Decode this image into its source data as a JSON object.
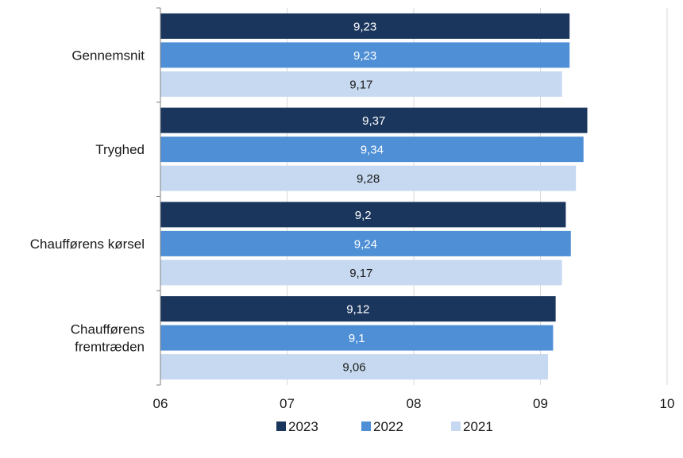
{
  "chart_data": {
    "type": "bar",
    "orientation": "horizontal",
    "categories": [
      "Gennemsnit",
      "Tryghed",
      "Chaufførens kørsel",
      "Chaufførens fremtræden"
    ],
    "category_lines": [
      [
        "Gennemsnit"
      ],
      [
        "Tryghed"
      ],
      [
        "Chaufførens kørsel"
      ],
      [
        "Chaufførens",
        "fremtræden"
      ]
    ],
    "series": [
      {
        "name": "2023",
        "color": "#1b365d",
        "label_color": "#ffffff",
        "values": [
          9.23,
          9.37,
          9.2,
          9.12
        ],
        "labels": [
          "9,23",
          "9,37",
          "9,2",
          "9,12"
        ]
      },
      {
        "name": "2022",
        "color": "#4f8fd6",
        "label_color": "#ffffff",
        "values": [
          9.23,
          9.34,
          9.24,
          9.1
        ],
        "labels": [
          "9,23",
          "9,34",
          "9,24",
          "9,1"
        ]
      },
      {
        "name": "2021",
        "color": "#c6d9f0",
        "label_color": "#1a1a1a",
        "values": [
          9.17,
          9.28,
          9.17,
          9.06
        ],
        "labels": [
          "9,17",
          "9,28",
          "9,17",
          "9,06"
        ]
      }
    ],
    "xlim": [
      6,
      10
    ],
    "xticks": [
      6,
      7,
      8,
      9,
      10
    ],
    "xtick_labels": [
      "06",
      "07",
      "08",
      "09",
      "10"
    ],
    "grid": true,
    "legend_position": "bottom",
    "title": "",
    "xlabel": "",
    "ylabel": ""
  }
}
